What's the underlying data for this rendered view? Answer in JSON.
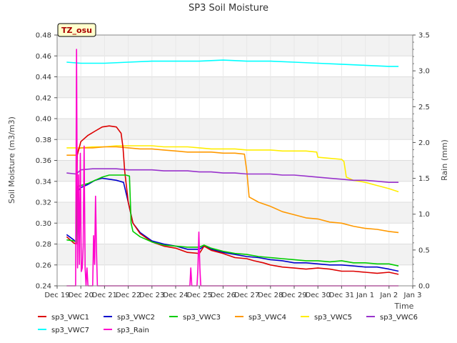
{
  "chart_data": {
    "type": "line",
    "title": "SP3 Soil Moisture",
    "xlabel": "Time",
    "ylabel": "Soil Moisture (m3/m3)",
    "y2label": "Rain (mm)",
    "badge": "TZ_osu",
    "xlim": [
      0,
      15
    ],
    "ylim": [
      0.24,
      0.48
    ],
    "y2lim": [
      0.0,
      3.5
    ],
    "x_ticks": [
      {
        "x": 0,
        "label": "Dec 19"
      },
      {
        "x": 1,
        "label": "Dec 20"
      },
      {
        "x": 2,
        "label": "Dec 21"
      },
      {
        "x": 3,
        "label": "Dec 22"
      },
      {
        "x": 4,
        "label": "Dec 23"
      },
      {
        "x": 5,
        "label": "Dec 24"
      },
      {
        "x": 6,
        "label": "Dec 25"
      },
      {
        "x": 7,
        "label": "Dec 26"
      },
      {
        "x": 8,
        "label": "Dec 27"
      },
      {
        "x": 9,
        "label": "Dec 28"
      },
      {
        "x": 10,
        "label": "Dec 29"
      },
      {
        "x": 11,
        "label": "Dec 30"
      },
      {
        "x": 12,
        "label": "Dec 31"
      },
      {
        "x": 13,
        "label": "Jan 1"
      },
      {
        "x": 14,
        "label": "Jan 2"
      },
      {
        "x": 15,
        "label": "Jan 3"
      }
    ],
    "y_ticks": [
      "0.24",
      "0.26",
      "0.28",
      "0.30",
      "0.32",
      "0.34",
      "0.36",
      "0.38",
      "0.40",
      "0.42",
      "0.44",
      "0.46",
      "0.48"
    ],
    "y2_ticks": [
      "0.0",
      "0.5",
      "1.0",
      "1.5",
      "2.0",
      "2.5",
      "3.0",
      "3.5"
    ],
    "grid": true,
    "legend_position": "bottom",
    "series": [
      {
        "name": "sp3_VWC1",
        "color": "#dd0000",
        "axis": "left",
        "x": [
          0.4,
          0.7,
          0.8,
          0.85,
          1.0,
          1.3,
          1.6,
          1.9,
          2.2,
          2.5,
          2.7,
          2.78,
          2.85,
          3.0,
          3.2,
          3.5,
          4.0,
          4.5,
          5.0,
          5.5,
          6.0,
          6.2,
          6.5,
          7.0,
          7.5,
          8.0,
          8.3,
          8.7,
          9.0,
          9.5,
          10.0,
          10.5,
          11.0,
          11.5,
          12.0,
          12.5,
          13.0,
          13.5,
          14.0,
          14.4
        ],
        "y": [
          0.287,
          0.281,
          0.28,
          0.365,
          0.378,
          0.384,
          0.388,
          0.392,
          0.393,
          0.392,
          0.386,
          0.372,
          0.35,
          0.32,
          0.3,
          0.29,
          0.282,
          0.278,
          0.276,
          0.272,
          0.271,
          0.278,
          0.274,
          0.271,
          0.267,
          0.266,
          0.264,
          0.262,
          0.26,
          0.258,
          0.257,
          0.256,
          0.257,
          0.256,
          0.254,
          0.254,
          0.253,
          0.252,
          0.253,
          0.251
        ]
      },
      {
        "name": "sp3_VWC2",
        "color": "#0000cc",
        "axis": "left",
        "x": [
          0.4,
          0.7,
          0.8,
          0.85,
          1.0,
          1.3,
          1.6,
          1.9,
          2.2,
          2.5,
          2.8,
          3.0,
          3.2,
          3.5,
          4.0,
          4.5,
          5.0,
          5.5,
          6.0,
          6.2,
          6.5,
          7.0,
          7.5,
          8.0,
          8.5,
          9.0,
          9.5,
          10.0,
          10.5,
          11.0,
          11.5,
          12.0,
          12.5,
          13.0,
          13.5,
          14.0,
          14.4
        ],
        "y": [
          0.289,
          0.284,
          0.282,
          0.33,
          0.334,
          0.337,
          0.341,
          0.343,
          0.342,
          0.341,
          0.339,
          0.32,
          0.3,
          0.291,
          0.283,
          0.28,
          0.278,
          0.275,
          0.275,
          0.278,
          0.275,
          0.272,
          0.27,
          0.268,
          0.267,
          0.265,
          0.264,
          0.262,
          0.262,
          0.261,
          0.26,
          0.26,
          0.259,
          0.258,
          0.258,
          0.256,
          0.254
        ]
      },
      {
        "name": "sp3_VWC3",
        "color": "#00cc00",
        "axis": "left",
        "x": [
          0.4,
          0.7,
          0.8,
          0.85,
          1.0,
          1.3,
          1.6,
          1.9,
          2.2,
          2.5,
          2.9,
          3.05,
          3.12,
          3.2,
          3.5,
          4.0,
          4.5,
          5.0,
          5.5,
          6.0,
          6.2,
          6.5,
          7.0,
          7.5,
          8.0,
          8.5,
          9.0,
          9.5,
          10.0,
          10.5,
          11.0,
          11.5,
          12.0,
          12.5,
          13.0,
          13.5,
          14.0,
          14.4
        ],
        "y": [
          0.284,
          0.283,
          0.282,
          0.335,
          0.336,
          0.338,
          0.341,
          0.344,
          0.346,
          0.346,
          0.346,
          0.345,
          0.3,
          0.292,
          0.287,
          0.282,
          0.279,
          0.278,
          0.277,
          0.277,
          0.279,
          0.276,
          0.273,
          0.271,
          0.27,
          0.268,
          0.267,
          0.266,
          0.265,
          0.264,
          0.264,
          0.263,
          0.264,
          0.262,
          0.262,
          0.261,
          0.261,
          0.259
        ]
      },
      {
        "name": "sp3_VWC4",
        "color": "#ff9900",
        "axis": "left",
        "x": [
          0.4,
          0.8,
          0.9,
          1.0,
          1.5,
          2.0,
          2.5,
          3.0,
          3.5,
          4.0,
          4.5,
          5.0,
          5.5,
          6.0,
          6.5,
          7.0,
          7.5,
          7.9,
          8.0,
          8.1,
          8.5,
          9.0,
          9.5,
          10.0,
          10.5,
          11.0,
          11.5,
          12.0,
          12.5,
          13.0,
          13.5,
          14.0,
          14.4
        ],
        "y": [
          0.365,
          0.365,
          0.371,
          0.372,
          0.372,
          0.373,
          0.373,
          0.372,
          0.371,
          0.371,
          0.37,
          0.369,
          0.368,
          0.368,
          0.368,
          0.367,
          0.367,
          0.366,
          0.35,
          0.325,
          0.32,
          0.316,
          0.311,
          0.308,
          0.305,
          0.304,
          0.301,
          0.3,
          0.297,
          0.295,
          0.294,
          0.292,
          0.291
        ]
      },
      {
        "name": "sp3_VWC5",
        "color": "#ffee00",
        "axis": "left",
        "x": [
          0.4,
          1.0,
          1.5,
          2.0,
          2.5,
          3.0,
          3.5,
          4.0,
          4.5,
          5.0,
          5.5,
          6.0,
          6.5,
          7.0,
          7.5,
          8.0,
          8.5,
          9.0,
          9.5,
          10.0,
          10.5,
          10.95,
          11.0,
          11.5,
          12.0,
          12.1,
          12.2,
          12.5,
          13.0,
          13.5,
          14.0,
          14.4
        ],
        "y": [
          0.372,
          0.372,
          0.373,
          0.373,
          0.374,
          0.374,
          0.374,
          0.374,
          0.373,
          0.373,
          0.373,
          0.372,
          0.371,
          0.371,
          0.371,
          0.37,
          0.37,
          0.37,
          0.369,
          0.369,
          0.369,
          0.368,
          0.363,
          0.362,
          0.361,
          0.359,
          0.344,
          0.341,
          0.339,
          0.336,
          0.333,
          0.33
        ]
      },
      {
        "name": "sp3_VWC6",
        "color": "#9933cc",
        "axis": "left",
        "x": [
          0.4,
          0.8,
          1.0,
          1.5,
          2.0,
          2.5,
          3.0,
          3.5,
          4.0,
          4.5,
          5.0,
          5.5,
          6.0,
          6.5,
          7.0,
          7.5,
          8.0,
          8.5,
          9.0,
          9.5,
          10.0,
          10.5,
          11.0,
          11.5,
          12.0,
          12.5,
          13.0,
          13.5,
          14.0,
          14.4
        ],
        "y": [
          0.348,
          0.347,
          0.351,
          0.352,
          0.352,
          0.352,
          0.351,
          0.351,
          0.351,
          0.35,
          0.35,
          0.35,
          0.349,
          0.349,
          0.348,
          0.348,
          0.347,
          0.347,
          0.347,
          0.346,
          0.346,
          0.345,
          0.344,
          0.343,
          0.342,
          0.341,
          0.341,
          0.34,
          0.339,
          0.339
        ]
      },
      {
        "name": "sp3_VWC7",
        "color": "#00ffff",
        "axis": "left",
        "x": [
          0.4,
          1.0,
          2.0,
          3.0,
          4.0,
          5.0,
          6.0,
          7.0,
          8.0,
          9.0,
          10.0,
          11.0,
          12.0,
          13.0,
          14.0,
          14.4
        ],
        "y": [
          0.454,
          0.453,
          0.453,
          0.454,
          0.455,
          0.455,
          0.455,
          0.456,
          0.455,
          0.455,
          0.454,
          0.453,
          0.452,
          0.451,
          0.45,
          0.45
        ]
      },
      {
        "name": "sp3_Rain",
        "color": "#ff00cc",
        "axis": "right",
        "x": [
          0.4,
          0.7,
          0.78,
          0.82,
          0.86,
          0.9,
          0.94,
          0.98,
          1.02,
          1.06,
          1.1,
          1.14,
          1.18,
          1.22,
          1.26,
          1.3,
          1.34,
          1.5,
          1.54,
          1.58,
          1.62,
          1.66,
          1.7,
          1.74,
          1.8,
          5.6,
          5.64,
          5.68,
          5.72,
          5.9,
          5.94,
          5.98,
          6.02,
          6.06,
          6.1,
          14.4
        ],
        "y": [
          0.0,
          0.0,
          0.0,
          3.3,
          0.25,
          1.55,
          0.3,
          1.85,
          0.2,
          0.25,
          0.55,
          1.95,
          0.25,
          0.0,
          0.25,
          0.0,
          0.0,
          0.0,
          0.7,
          0.3,
          1.25,
          0.5,
          0.0,
          0.0,
          0.0,
          0.0,
          0.25,
          0.0,
          0.0,
          0.0,
          0.25,
          0.75,
          0.25,
          0.0,
          0.0,
          0.0
        ]
      }
    ]
  }
}
